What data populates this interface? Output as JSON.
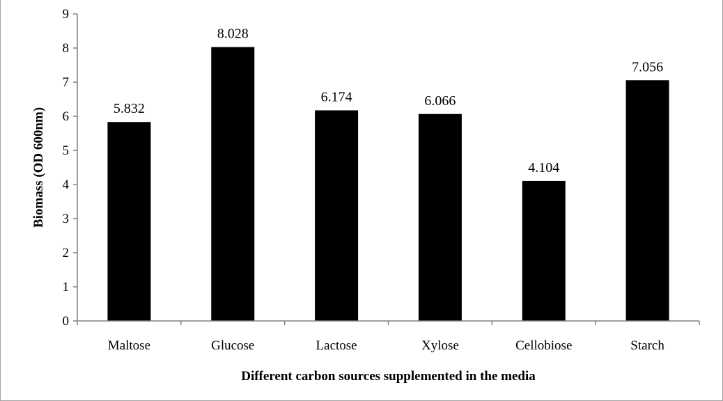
{
  "chart_data": {
    "type": "bar",
    "categories": [
      "Maltose",
      "Glucose",
      "Lactose",
      "Xylose",
      "Cellobiose",
      "Starch"
    ],
    "values": [
      5.832,
      8.028,
      6.174,
      6.066,
      4.104,
      7.056
    ],
    "data_labels": [
      "5.832",
      "8.028",
      "6.174",
      "6.066",
      "4.104",
      "7.056"
    ],
    "title": "",
    "xlabel": "Different carbon sources supplemented in the media",
    "ylabel": "Biomass (OD 600nm)",
    "ylim": [
      0,
      9
    ],
    "yticks": [
      0,
      1,
      2,
      3,
      4,
      5,
      6,
      7,
      8,
      9
    ],
    "grid": false,
    "legend": "none",
    "bar_color": "#000000"
  }
}
